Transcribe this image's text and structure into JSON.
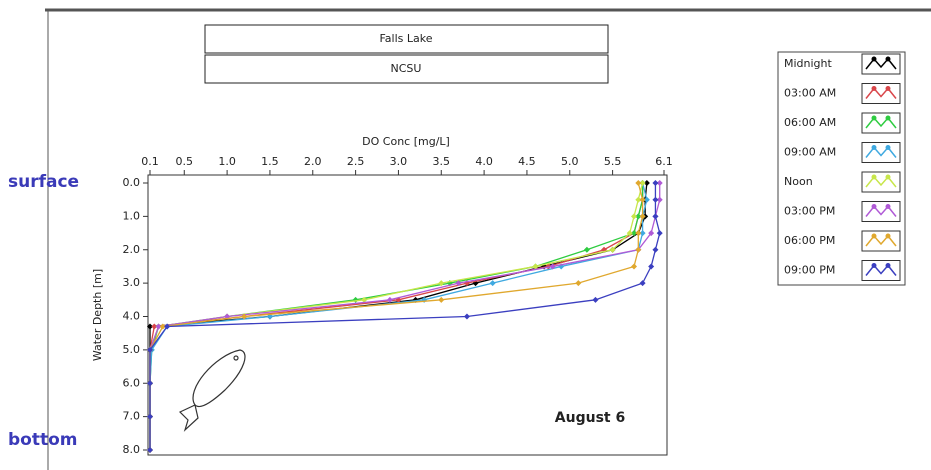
{
  "chart_data": {
    "type": "line",
    "title": "Falls Lake",
    "subtitle": "NCSU",
    "x_label": "DO Conc [mg/L]",
    "y_label": "Water Depth [m]",
    "annotation": "August 6",
    "top_label": "surface",
    "bottom_label": "bottom",
    "xlim": [
      0.1,
      6.1
    ],
    "xticks": [
      0.1,
      0.5,
      {
        "value": 1,
        "label": "1.0"
      },
      1.5,
      {
        "value": 2,
        "label": "2.0"
      },
      2.5,
      {
        "value": 3,
        "label": "3.0"
      },
      3.5,
      {
        "value": 4,
        "label": "4.0"
      },
      4.5,
      {
        "value": 5,
        "label": "5.0"
      },
      5.5,
      6.1
    ],
    "ylim": [
      0,
      8
    ],
    "yticks": [
      {
        "value": 0,
        "label": "0.0"
      },
      {
        "value": 1,
        "label": "1.0"
      },
      {
        "value": 2,
        "label": "2.0"
      },
      {
        "value": 3,
        "label": "3.0"
      },
      {
        "value": 4,
        "label": "4.0"
      },
      {
        "value": 5,
        "label": "5.0"
      },
      {
        "value": 6,
        "label": "6.0"
      },
      {
        "value": 7,
        "label": "7.0"
      },
      {
        "value": 8,
        "label": "8.0"
      }
    ],
    "y_inverted": true,
    "y": [
      0,
      0.5,
      1,
      1.5,
      2,
      2.5,
      3,
      3.5,
      4,
      4.3,
      5,
      6,
      7,
      8
    ],
    "series": [
      {
        "name": "Midnight",
        "color": "#000000",
        "values": [
          5.9,
          5.88,
          5.88,
          5.8,
          5.5,
          4.7,
          3.9,
          3.2,
          1.5,
          0.1,
          0.1,
          0.1,
          0.1,
          0.1
        ]
      },
      {
        "name": "03:00 AM",
        "color": "#d9464a",
        "values": [
          5.85,
          5.85,
          5.8,
          5.75,
          5.4,
          4.75,
          3.8,
          3.0,
          1.2,
          0.15,
          0.1,
          0.1,
          0.1,
          0.1
        ]
      },
      {
        "name": "06:00 AM",
        "color": "#2ecc40",
        "values": [
          5.85,
          5.85,
          5.8,
          5.75,
          5.2,
          4.6,
          3.6,
          2.5,
          1.0,
          0.2,
          0.12,
          0.1,
          0.1,
          0.1
        ]
      },
      {
        "name": "09:00 AM",
        "color": "#3fa9e0",
        "values": [
          5.85,
          5.9,
          5.85,
          5.85,
          5.8,
          4.9,
          4.1,
          3.3,
          1.5,
          0.3,
          0.12,
          0.1,
          0.1,
          0.1
        ]
      },
      {
        "name": "Noon",
        "color": "#c8e64a",
        "values": [
          5.85,
          5.8,
          5.75,
          5.7,
          5.5,
          4.6,
          3.5,
          2.6,
          1.0,
          0.2,
          0.1,
          0.1,
          0.1,
          0.1
        ]
      },
      {
        "name": "03:00 PM",
        "color": "#b05ad6",
        "values": [
          6.05,
          6.05,
          6.0,
          5.95,
          5.8,
          4.8,
          3.7,
          2.9,
          1.0,
          0.2,
          0.1,
          0.1,
          0.1,
          0.1
        ]
      },
      {
        "name": "06:00 PM",
        "color": "#e0a82e",
        "values": [
          5.8,
          5.85,
          5.85,
          5.8,
          5.8,
          5.75,
          5.1,
          3.5,
          1.2,
          0.25,
          0.1,
          0.1,
          0.1,
          0.1
        ]
      },
      {
        "name": "09:00 PM",
        "color": "#3b3fc0",
        "values": [
          6.0,
          6.0,
          6.0,
          6.05,
          6.0,
          5.95,
          5.85,
          5.3,
          3.8,
          0.3,
          0.1,
          0.1,
          0.1,
          0.1
        ]
      }
    ]
  }
}
